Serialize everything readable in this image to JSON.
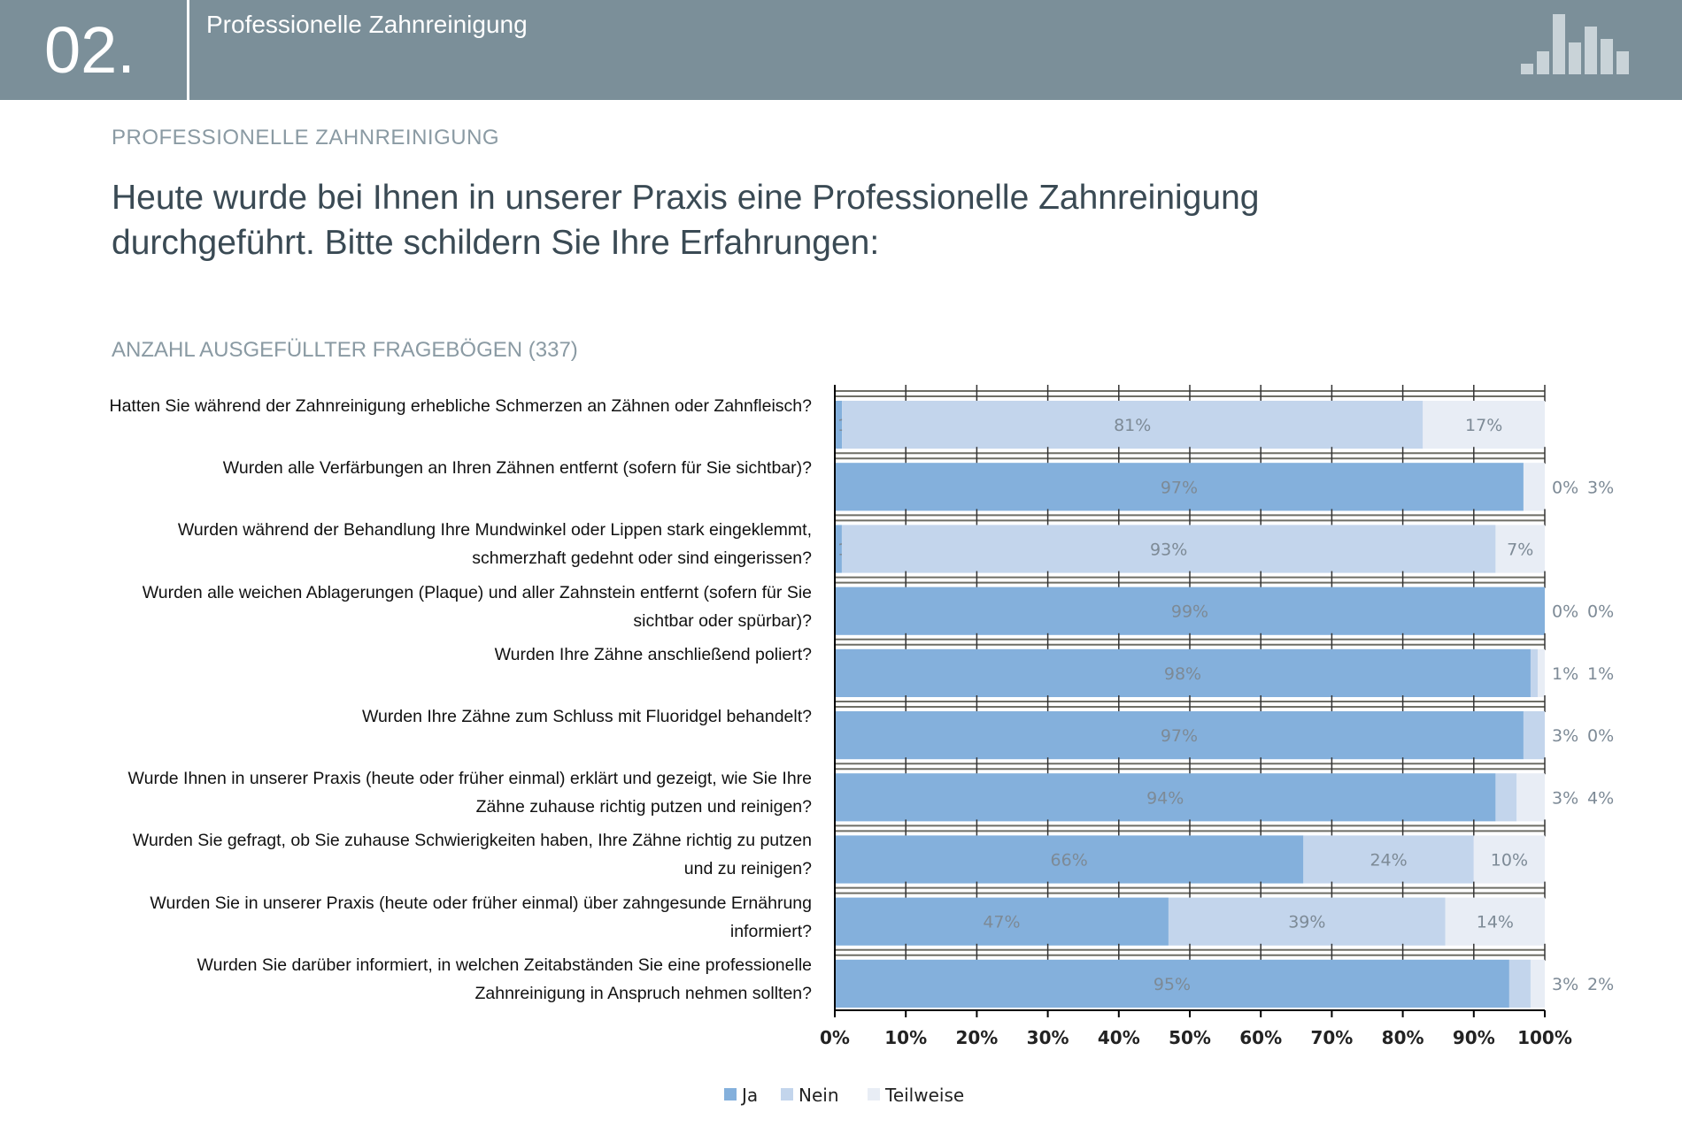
{
  "header": {
    "number": "02.",
    "title": "Professionelle Zahnreinigung",
    "logo_icon": "bar-chart-logo-icon"
  },
  "section_label": "PROFESSIONELLE ZAHNREINIGUNG",
  "question": "Heute wurde bei Ihnen in unserer Praxis eine Professionelle Zahnreinigung durchgeführt. Bitte schildern Sie Ihre Erfahrungen:",
  "count_label": "ANZAHL AUSGEFÜLLTER FRAGEBÖGEN (337)",
  "chart_data": {
    "type": "bar",
    "orientation": "horizontal",
    "stacked": "100%",
    "categories": [
      "Hatten Sie während der Zahnreinigung erhebliche Schmerzen an Zähnen oder Zahnfleisch?",
      "Wurden alle Verfärbungen an Ihren Zähnen entfernt (sofern für Sie sichtbar)?",
      "Wurden während der Behandlung Ihre Mundwinkel oder Lippen stark eingeklemmt, schmerzhaft gedehnt oder sind eingerissen?",
      "Wurden alle weichen Ablagerungen (Plaque) und aller Zahnstein entfernt (sofern für Sie sichtbar oder spürbar)?",
      "Wurden Ihre Zähne anschließend poliert?",
      "Wurden Ihre Zähne zum Schluss mit Fluoridgel behandelt?",
      "Wurde Ihnen in unserer Praxis (heute oder früher einmal) erklärt und gezeigt, wie Sie Ihre Zähne zuhause richtig putzen und reinigen?",
      "Wurden Sie gefragt, ob Sie zuhause Schwierigkeiten haben, Ihre Zähne richtig zu putzen und zu reinigen?",
      "Wurden Sie in unserer Praxis (heute oder früher einmal) über zahngesunde Ernährung informiert?",
      "Wurden Sie darüber informiert, in welchen Zeitabständen Sie eine professionelle Zahnreinigung in Anspruch nehmen sollten?"
    ],
    "series": [
      {
        "name": "Ja",
        "color": "#84b0dc",
        "values": [
          1,
          97,
          1,
          99,
          98,
          97,
          94,
          66,
          47,
          95
        ]
      },
      {
        "name": "Nein",
        "color": "#c3d5ec",
        "values": [
          81,
          0,
          93,
          0,
          1,
          3,
          3,
          24,
          39,
          3
        ]
      },
      {
        "name": "Teilweise",
        "color": "#e8edf5",
        "values": [
          17,
          3,
          7,
          0,
          1,
          0,
          4,
          10,
          14,
          2
        ]
      }
    ],
    "xticks": [
      "0%",
      "10%",
      "20%",
      "30%",
      "40%",
      "50%",
      "60%",
      "70%",
      "80%",
      "90%",
      "100%"
    ],
    "xlim": [
      0,
      100
    ],
    "legend": "bottom",
    "grid": true
  }
}
